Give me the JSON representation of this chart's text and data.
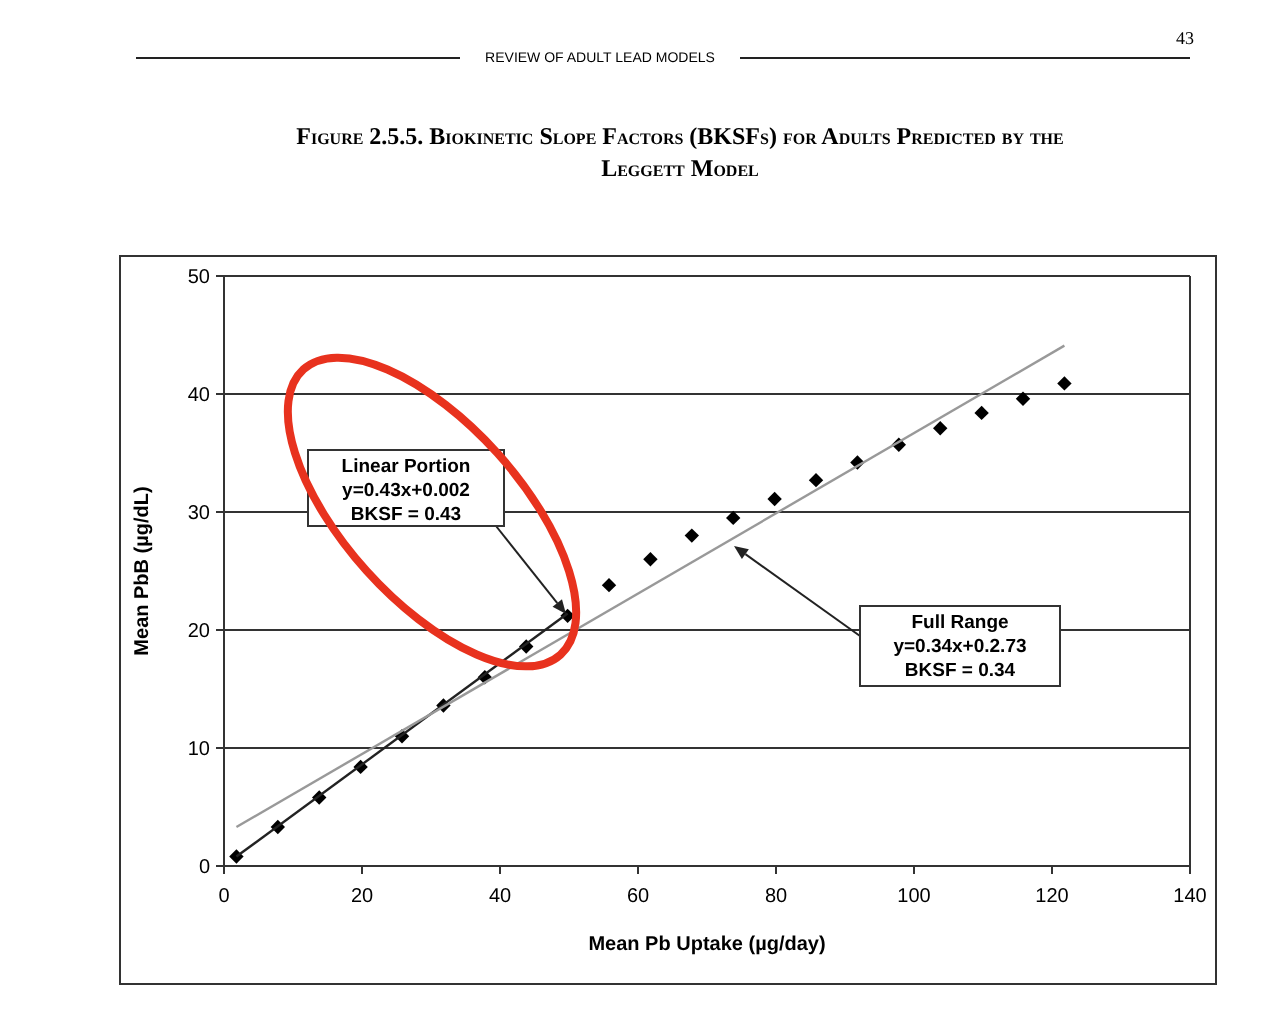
{
  "chart_data": {
    "type": "scatter",
    "title": "Figure 2.5.5. Biokinetic Slope Factors (BKSFs) for Adults Predicted by the Leggett Model",
    "xlabel": "Mean Pb Uptake (µg/day)",
    "ylabel": "Mean PbB (µg/dL)",
    "annotations": [
      "43",
      "REVIEW OF ADULT LEAD MODELS",
      "Linear Portion\ny=0.43x+0.002\nBKSF = 0.43",
      "Full Range\ny=0.34x+0.2.73\nBKSF = 0.34"
    ],
    "x": [
      1.8,
      7.8,
      13.8,
      19.8,
      25.8,
      31.8,
      37.8,
      43.8,
      49.8,
      55.8,
      61.8,
      67.8,
      73.8,
      79.8,
      85.8,
      91.8,
      97.8,
      103.8,
      109.8,
      115.8,
      121.8
    ],
    "series": [
      {
        "color": "#000000",
        "marker": "diamond",
        "values": [
          0.8,
          3.3,
          5.8,
          8.4,
          11,
          13.6,
          16,
          18.6,
          21.2,
          23.8,
          26,
          28,
          29.5,
          31.1,
          32.7,
          34.2,
          35.7,
          37.1,
          38.4,
          39.6,
          40.9
        ]
      },
      {
        "type": "line",
        "color": "#222222",
        "marker": "none",
        "x": [
          1.8,
          49.8
        ],
        "values": [
          0.8,
          21.4
        ]
      },
      {
        "type": "line",
        "color": "#999999",
        "marker": "none",
        "x": [
          1.8,
          121.8
        ],
        "values": [
          3.3,
          44.1
        ]
      }
    ],
    "xlim": [
      0,
      140
    ],
    "xticks": [
      0,
      20,
      40,
      60,
      80,
      100,
      120,
      140
    ],
    "ylim": [
      0,
      50
    ],
    "yticks": [
      0,
      10,
      20,
      30,
      40,
      50
    ],
    "grid": "y"
  }
}
